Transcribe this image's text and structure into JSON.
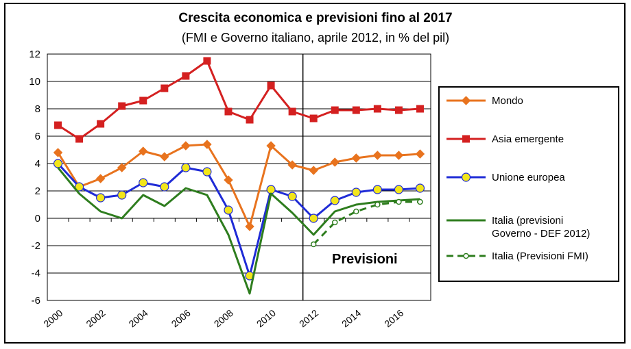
{
  "chart_data": {
    "type": "line",
    "title": "Crescita economica e previsioni fino al 2017",
    "subtitle": "(FMI e Governo italiano, aprile 2012, in % del pil)",
    "xlabel": "",
    "ylabel": "",
    "x": [
      2000,
      2001,
      2002,
      2003,
      2004,
      2005,
      2006,
      2007,
      2008,
      2009,
      2010,
      2011,
      2012,
      2013,
      2014,
      2015,
      2016,
      2017
    ],
    "x_tick_labels": [
      "2000",
      "2002",
      "2004",
      "2006",
      "2008",
      "2010",
      "2012",
      "2014",
      "2016"
    ],
    "ylim": [
      -6,
      12
    ],
    "y_ticks": [
      -6,
      -4,
      -2,
      0,
      2,
      4,
      6,
      8,
      10,
      12
    ],
    "forecast_divider_x": 2011.5,
    "annotation": "Previsioni",
    "grid": true,
    "legend_position": "right",
    "series": [
      {
        "name": "Mondo",
        "color": "#E8731E",
        "marker": "diamond",
        "style": "solid",
        "x": [
          2000,
          2001,
          2002,
          2003,
          2004,
          2005,
          2006,
          2007,
          2008,
          2009,
          2010,
          2011,
          2012,
          2013,
          2014,
          2015,
          2016,
          2017
        ],
        "values": [
          4.8,
          2.3,
          2.9,
          3.7,
          4.9,
          4.5,
          5.3,
          5.4,
          2.8,
          -0.6,
          5.3,
          3.9,
          3.5,
          4.1,
          4.4,
          4.6,
          4.6,
          4.7
        ]
      },
      {
        "name": "Asia emergente",
        "color": "#D42020",
        "marker": "square",
        "style": "solid",
        "x": [
          2000,
          2001,
          2002,
          2003,
          2004,
          2005,
          2006,
          2007,
          2008,
          2009,
          2010,
          2011,
          2012,
          2013,
          2014,
          2015,
          2016,
          2017
        ],
        "values": [
          6.8,
          5.8,
          6.9,
          8.2,
          8.6,
          9.5,
          10.4,
          11.5,
          7.8,
          7.2,
          9.7,
          7.8,
          7.3,
          7.9,
          7.9,
          8.0,
          7.9,
          8.0
        ]
      },
      {
        "name": "Unione europea",
        "color": "#1F2BD6",
        "marker": "circle",
        "style": "solid",
        "x": [
          2000,
          2001,
          2002,
          2003,
          2004,
          2005,
          2006,
          2007,
          2008,
          2009,
          2010,
          2011,
          2012,
          2013,
          2014,
          2015,
          2016,
          2017
        ],
        "values": [
          4.0,
          2.3,
          1.5,
          1.7,
          2.6,
          2.3,
          3.7,
          3.4,
          0.6,
          -4.2,
          2.1,
          1.6,
          0.0,
          1.3,
          1.9,
          2.1,
          2.1,
          2.2
        ]
      },
      {
        "name": "Italia (previsioni\nGoverno - DEF 2012)",
        "color": "#2E7D1E",
        "marker": "none",
        "style": "solid",
        "x": [
          2000,
          2001,
          2002,
          2003,
          2004,
          2005,
          2006,
          2007,
          2008,
          2009,
          2010,
          2011,
          2012,
          2013,
          2014,
          2015,
          2016,
          2017
        ],
        "values": [
          3.7,
          1.8,
          0.5,
          0.0,
          1.7,
          0.9,
          2.2,
          1.7,
          -1.2,
          -5.5,
          1.8,
          0.4,
          -1.2,
          0.5,
          1.0,
          1.2,
          1.3,
          1.4
        ]
      },
      {
        "name": "Italia (Previsioni FMI)",
        "color": "#2E7D1E",
        "marker": "open-circle",
        "style": "dashed",
        "x": [
          2012,
          2013,
          2014,
          2015,
          2016,
          2017
        ],
        "values": [
          -1.9,
          -0.3,
          0.5,
          1.0,
          1.2,
          1.2
        ]
      }
    ]
  }
}
